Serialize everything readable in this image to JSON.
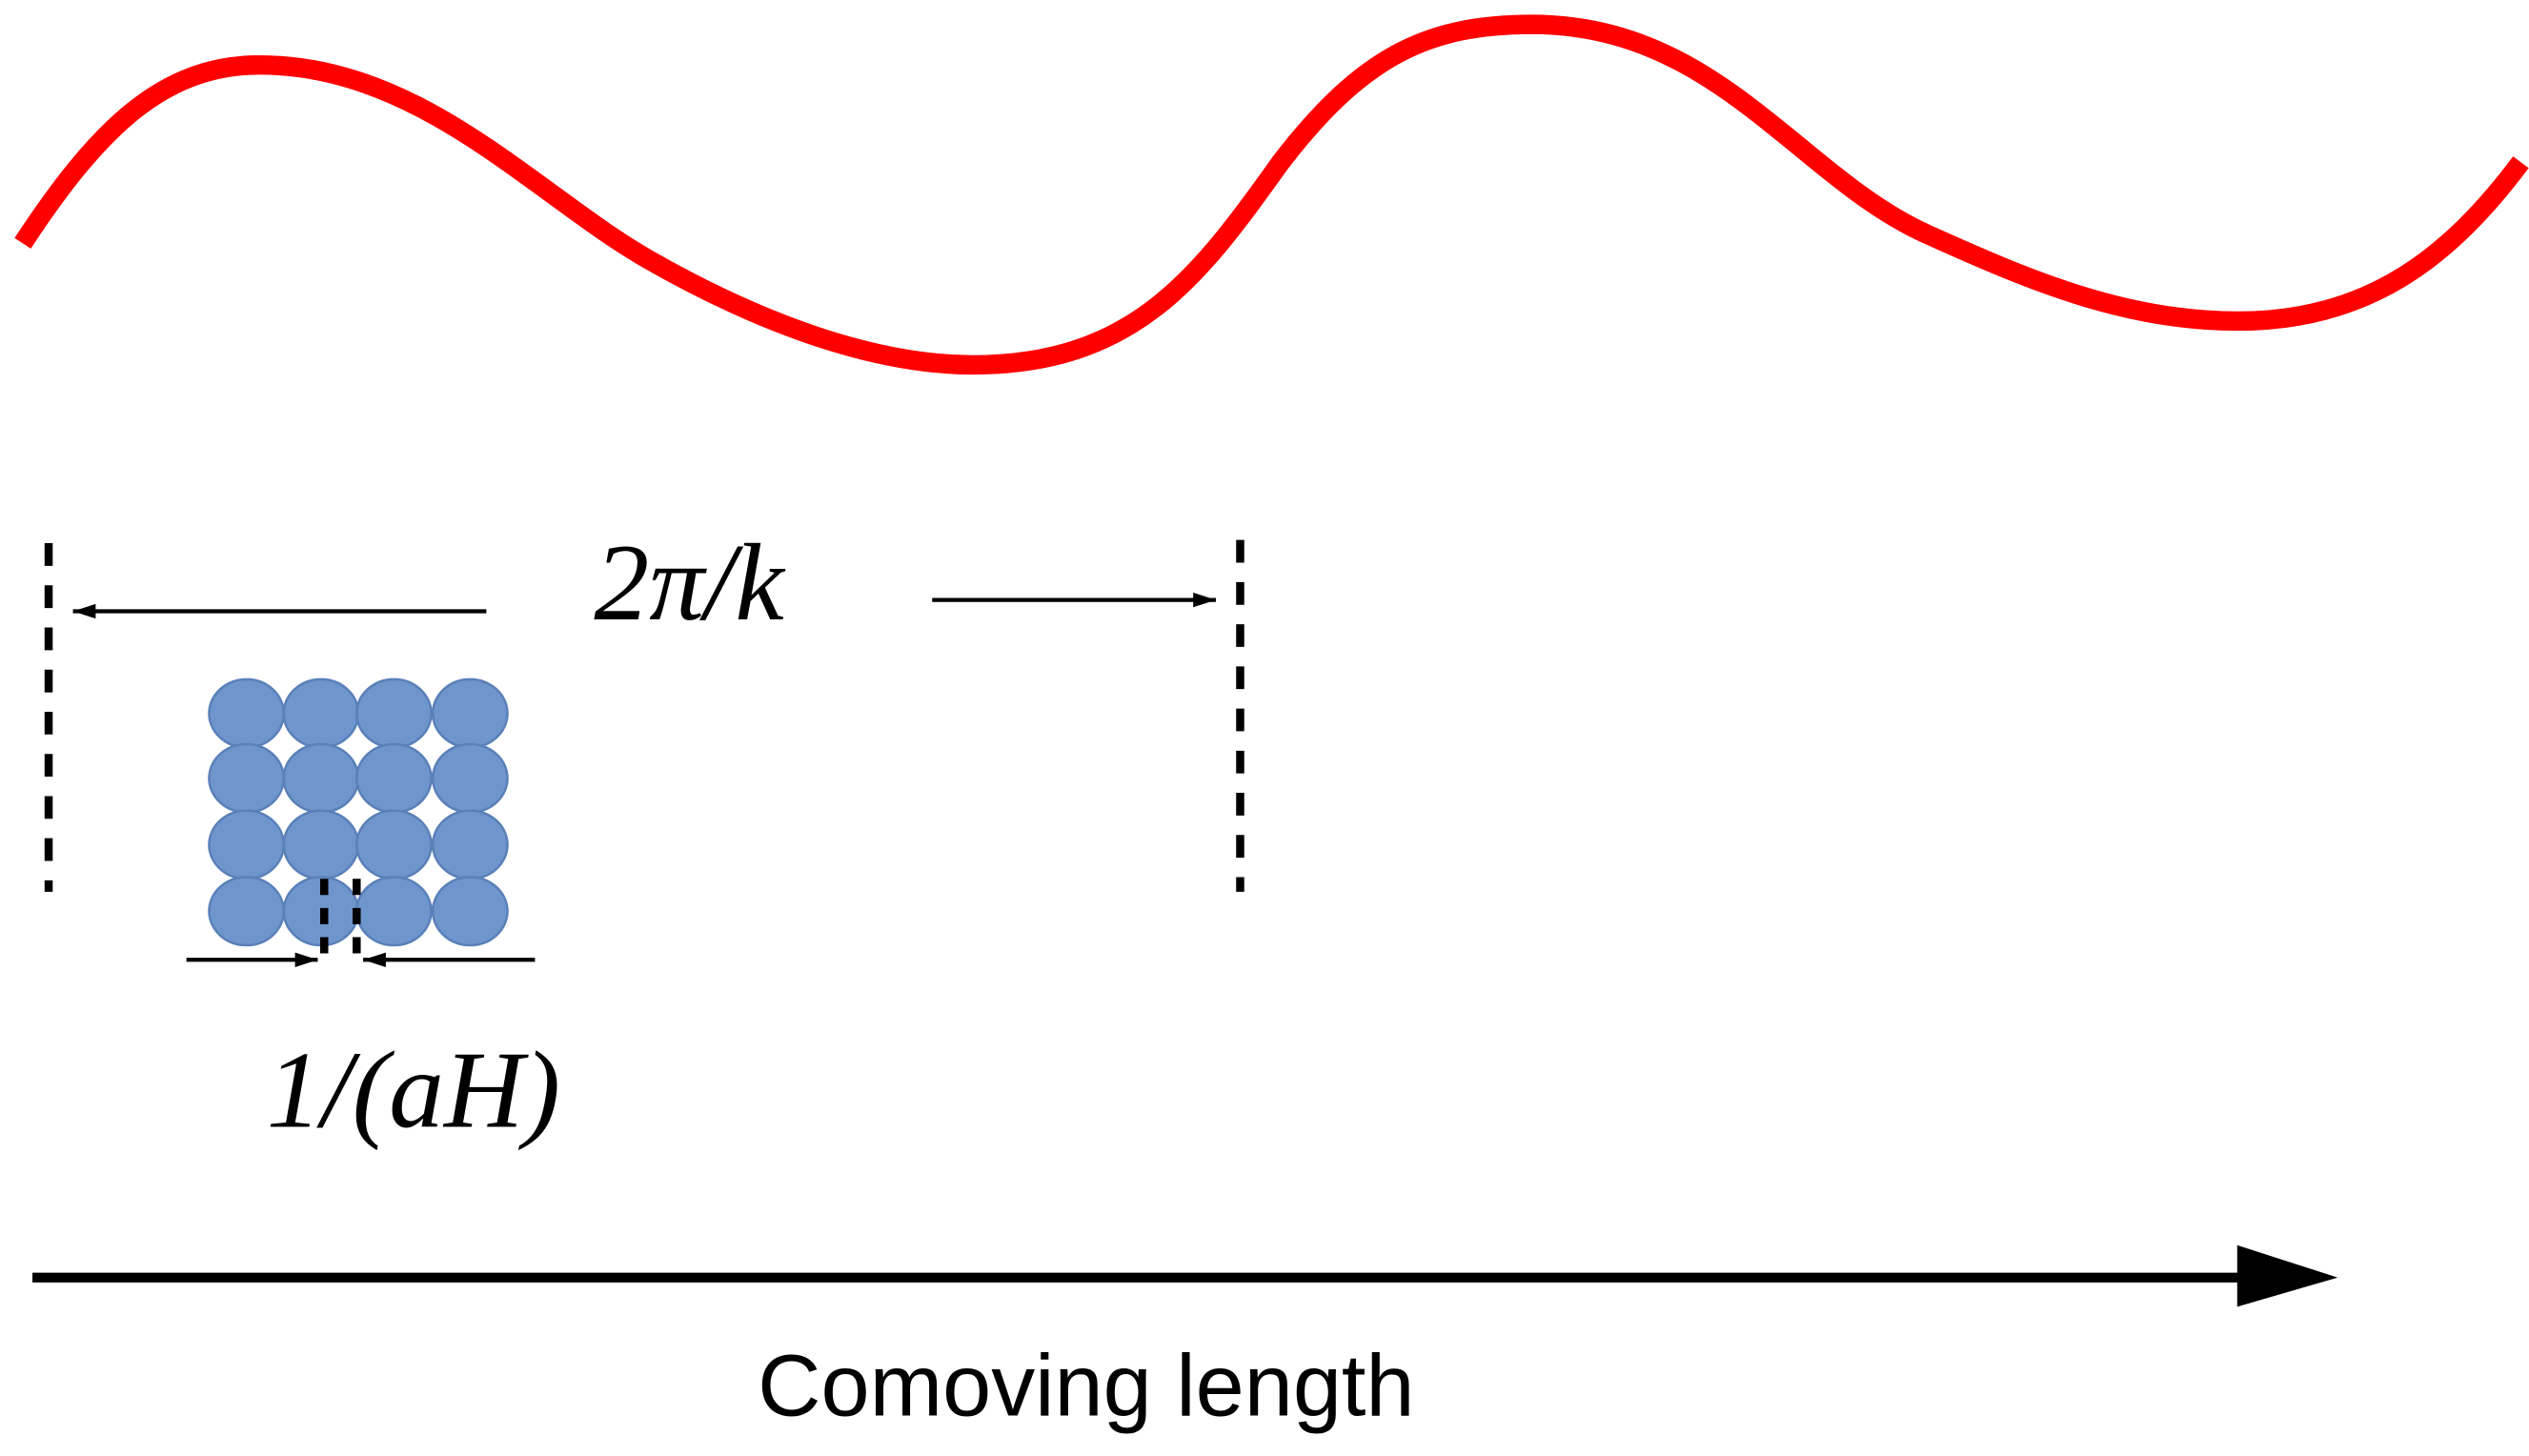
{
  "labels": {
    "wavelength": "2π/k",
    "horizon": "1/(aH)",
    "axis": "Comoving length"
  }
}
